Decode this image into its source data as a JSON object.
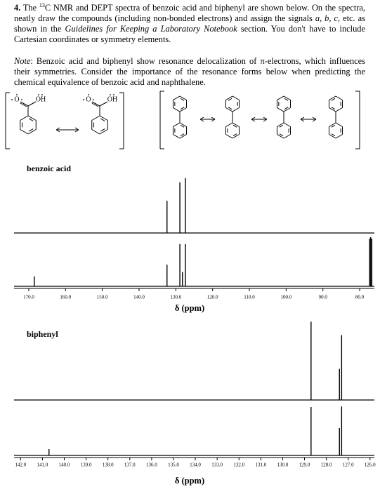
{
  "document": {
    "question": [
      "4.",
      " The ",
      "13",
      "C NMR and DEPT spectra of benzoic acid and biphenyl are shown below. On the spectra, neatly draw the compounds (including non-bonded electrons) and assign the signals ",
      "a, b, c,",
      " etc. as shown in the ",
      "Guidelines for Keeping a Laboratory Notebook",
      " section. You don't have to include Cartesian coordinates or symmetry elements."
    ],
    "note": [
      "Note",
      ": Benzoic acid and biphenyl show resonance delocalization of π-electrons, which influences their symmetries. Consider the importance of the resonance forms below when predicting the chemical equivalence of benzoic acid and naphthalene."
    ],
    "structure_atoms": [
      "O",
      "OH"
    ]
  },
  "chart_data": [
    {
      "type": "spectrum",
      "title": "benzoic acid",
      "xlabel": "δ (ppm)",
      "xlim": [
        174,
        76
      ],
      "xticks": [
        {
          "value": 170,
          "label": "170.0"
        },
        {
          "value": 160,
          "label": "160.0"
        },
        {
          "value": 150,
          "label": "150.0"
        },
        {
          "value": 140,
          "label": "140.0"
        },
        {
          "value": 130,
          "label": "130.0"
        },
        {
          "value": 120,
          "label": "120.0"
        },
        {
          "value": 110,
          "label": "110.0"
        },
        {
          "value": 100,
          "label": "100.0"
        },
        {
          "value": 90,
          "label": "90.0"
        },
        {
          "value": 80,
          "label": "80.0"
        }
      ],
      "ylim": [
        0,
        100
      ],
      "color": "#000000",
      "traces": [
        {
          "peaks": [
            132.4,
            128.9,
            127.4
          ],
          "intensities": [
            54,
            85,
            92
          ]
        },
        {
          "peaks": [
            168.5,
            132.4,
            128.9,
            128.2,
            127.4,
            77.3,
            77.0,
            76.7
          ],
          "intensities": [
            20,
            44,
            86,
            29,
            86,
            97,
            100,
            97
          ]
        }
      ]
    },
    {
      "type": "spectrum",
      "title": "biphenyl",
      "xlabel": "δ (ppm)",
      "xlim": [
        142.3,
        125.8
      ],
      "xticks": [
        {
          "value": 142,
          "label": "142.0"
        },
        {
          "value": 141,
          "label": "141.0"
        },
        {
          "value": 140,
          "label": "140.0"
        },
        {
          "value": 139,
          "label": "139.0"
        },
        {
          "value": 138,
          "label": "138.0"
        },
        {
          "value": 137,
          "label": "137.0"
        },
        {
          "value": 136,
          "label": "136.0"
        },
        {
          "value": 135,
          "label": "135.0"
        },
        {
          "value": 134,
          "label": "134.0"
        },
        {
          "value": 133,
          "label": "133.0"
        },
        {
          "value": 132,
          "label": "132.0"
        },
        {
          "value": 131,
          "label": "131.0"
        },
        {
          "value": 130,
          "label": "130.0"
        },
        {
          "value": 129,
          "label": "129.0"
        },
        {
          "value": 128,
          "label": "128.0"
        },
        {
          "value": 127,
          "label": "127.0"
        },
        {
          "value": 126,
          "label": "126.0"
        }
      ],
      "ylim": [
        0,
        100
      ],
      "color": "#000000",
      "traces": [
        {
          "peaks": [
            128.7,
            127.4,
            127.3
          ],
          "intensities": [
            93,
            37,
            77
          ]
        },
        {
          "peaks": [
            140.7,
            128.7,
            127.4,
            127.3
          ],
          "intensities": [
            12,
            92,
            52,
            93
          ]
        }
      ]
    }
  ]
}
